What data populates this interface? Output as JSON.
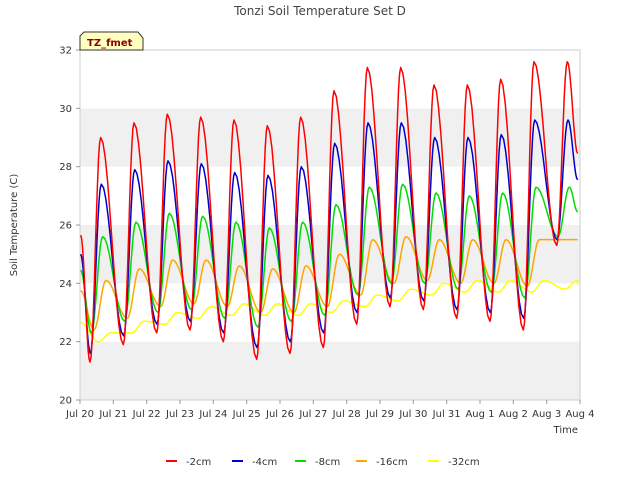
{
  "chart_data": {
    "type": "line",
    "title": "Tonzi Soil Temperature Set D",
    "xlabel": "Time",
    "ylabel": "Soil Temperature (C)",
    "ylim": [
      20,
      32
    ],
    "yticks": [
      20,
      22,
      24,
      26,
      28,
      30,
      32
    ],
    "xlim": [
      "2024-07-20",
      "2024-08-04"
    ],
    "xtick_labels": [
      "Jul 20",
      "Jul 21",
      "Jul 22",
      "Jul 23",
      "Jul 24",
      "Jul 25",
      "Jul 26",
      "Jul 27",
      "Jul 28",
      "Jul 29",
      "Jul 30",
      "Jul 31",
      "Aug 1",
      "Aug 2",
      "Aug 3",
      "Aug 4"
    ],
    "x_start": "2024-07-20",
    "grid": "horizontal alternating bands",
    "legend_position": "bottom",
    "badge": "TZ_fmet",
    "series": [
      {
        "name": "-2cm",
        "color": "#ff0000",
        "x": [
          "2024-07-20",
          "2024-07-21",
          "2024-07-22",
          "2024-07-23",
          "2024-07-24",
          "2024-07-25",
          "2024-07-26",
          "2024-07-27",
          "2024-07-28",
          "2024-07-29",
          "2024-07-30",
          "2024-07-31",
          "2024-08-01",
          "2024-08-02",
          "2024-08-03"
        ],
        "min": [
          21.3,
          21.9,
          22.3,
          22.4,
          22.0,
          21.4,
          21.6,
          21.8,
          22.6,
          23.2,
          23.1,
          22.8,
          22.7,
          22.4,
          25.3
        ],
        "max": [
          29.0,
          29.5,
          29.8,
          29.7,
          29.6,
          29.4,
          29.7,
          30.6,
          31.4,
          31.4,
          30.8,
          30.8,
          31.0,
          31.6,
          31.6
        ]
      },
      {
        "name": "-4cm",
        "color": "#0000cc",
        "x": [
          "2024-07-20",
          "2024-07-21",
          "2024-07-22",
          "2024-07-23",
          "2024-07-24",
          "2024-07-25",
          "2024-07-26",
          "2024-07-27",
          "2024-07-28",
          "2024-07-29",
          "2024-07-30",
          "2024-07-31",
          "2024-08-01",
          "2024-08-02",
          "2024-08-03"
        ],
        "min": [
          21.6,
          22.2,
          22.6,
          22.7,
          22.3,
          21.8,
          22.0,
          22.3,
          23.0,
          23.5,
          23.4,
          23.1,
          23.0,
          22.8,
          25.5
        ],
        "max": [
          27.4,
          27.9,
          28.2,
          28.1,
          27.8,
          27.7,
          28.0,
          28.8,
          29.5,
          29.5,
          29.0,
          29.0,
          29.1,
          29.6,
          29.6
        ]
      },
      {
        "name": "-8cm",
        "color": "#00dd00",
        "x": [
          "2024-07-20",
          "2024-07-21",
          "2024-07-22",
          "2024-07-23",
          "2024-07-24",
          "2024-07-25",
          "2024-07-26",
          "2024-07-27",
          "2024-07-28",
          "2024-07-29",
          "2024-07-30",
          "2024-07-31",
          "2024-08-01",
          "2024-08-02",
          "2024-08-03"
        ],
        "min": [
          22.3,
          22.7,
          23.0,
          23.1,
          22.8,
          22.5,
          22.7,
          22.9,
          23.6,
          24.0,
          24.0,
          23.8,
          23.7,
          23.5,
          25.6
        ],
        "max": [
          25.6,
          26.1,
          26.4,
          26.3,
          26.1,
          25.9,
          26.1,
          26.7,
          27.3,
          27.4,
          27.1,
          27.0,
          27.1,
          27.3,
          27.3
        ]
      },
      {
        "name": "-16cm",
        "color": "#ffa500",
        "x": [
          "2024-07-20",
          "2024-07-21",
          "2024-07-22",
          "2024-07-23",
          "2024-07-24",
          "2024-07-25",
          "2024-07-26",
          "2024-07-27",
          "2024-07-28",
          "2024-07-29",
          "2024-07-30",
          "2024-07-31",
          "2024-08-01",
          "2024-08-02",
          "2024-08-03"
        ],
        "min": [
          22.4,
          22.8,
          23.2,
          23.3,
          23.2,
          23.0,
          23.0,
          23.2,
          23.6,
          24.0,
          24.1,
          24.0,
          24.0,
          23.9,
          25.5
        ],
        "max": [
          24.1,
          24.5,
          24.8,
          24.8,
          24.6,
          24.5,
          24.6,
          25.0,
          25.5,
          25.6,
          25.5,
          25.5,
          25.5,
          25.5,
          25.5
        ]
      },
      {
        "name": "-32cm",
        "color": "#ffff00",
        "x": [
          "2024-07-20",
          "2024-07-21",
          "2024-07-22",
          "2024-07-23",
          "2024-07-24",
          "2024-07-25",
          "2024-07-26",
          "2024-07-27",
          "2024-07-28",
          "2024-07-29",
          "2024-07-30",
          "2024-07-31",
          "2024-08-01",
          "2024-08-02",
          "2024-08-03"
        ],
        "min": [
          22.0,
          22.3,
          22.6,
          22.8,
          22.9,
          22.9,
          22.9,
          23.0,
          23.2,
          23.4,
          23.6,
          23.7,
          23.7,
          23.7,
          23.8
        ],
        "max": [
          22.3,
          22.7,
          23.0,
          23.2,
          23.3,
          23.3,
          23.3,
          23.4,
          23.6,
          23.8,
          24.0,
          24.1,
          24.1,
          24.1,
          24.1
        ]
      }
    ]
  }
}
